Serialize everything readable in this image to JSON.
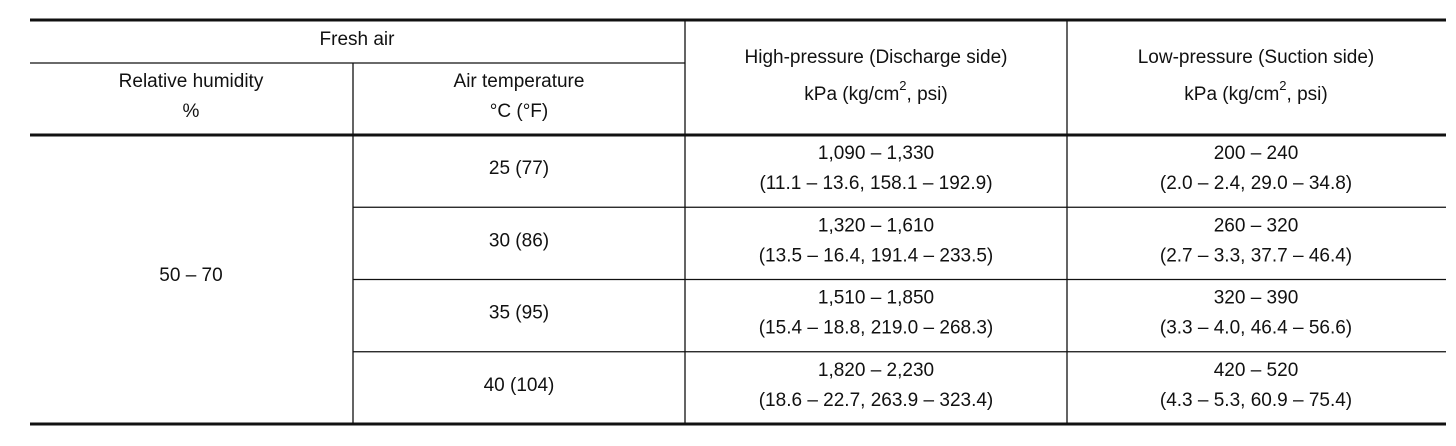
{
  "table": {
    "header": {
      "group": "Fresh air",
      "humidity": [
        "Relative humidity",
        "%"
      ],
      "temperature": [
        "Air temperature",
        "°C (°F)"
      ],
      "high": {
        "title": "High-pressure (Discharge side)",
        "unit": [
          "kPa (kg/cm",
          "2",
          ", psi)"
        ]
      },
      "low": {
        "title": "Low-pressure (Suction side)",
        "unit": [
          "kPa (kg/cm",
          "2",
          ", psi)"
        ]
      }
    },
    "humidity": "50 – 70",
    "rows": [
      {
        "temperature": "25 (77)",
        "high": [
          "1,090 – 1,330",
          "(11.1 – 13.6, 158.1 – 192.9)"
        ],
        "low": [
          "200 – 240",
          "(2.0 – 2.4, 29.0 – 34.8)"
        ]
      },
      {
        "temperature": "30 (86)",
        "high": [
          "1,320 – 1,610",
          "(13.5 – 16.4, 191.4 – 233.5)"
        ],
        "low": [
          "260 – 320",
          "(2.7 – 3.3, 37.7 – 46.4)"
        ]
      },
      {
        "temperature": "35 (95)",
        "high": [
          "1,510 – 1,850",
          "(15.4 – 18.8, 219.0 – 268.3)"
        ],
        "low": [
          "320 – 390",
          "(3.3 – 4.0, 46.4 – 56.6)"
        ]
      },
      {
        "temperature": "40 (104)",
        "high": [
          "1,820 – 2,230",
          "(18.6 – 22.7, 263.9 – 323.4)"
        ],
        "low": [
          "420 – 520",
          "(4.3 – 5.3, 60.9 – 75.4)"
        ]
      }
    ]
  }
}
